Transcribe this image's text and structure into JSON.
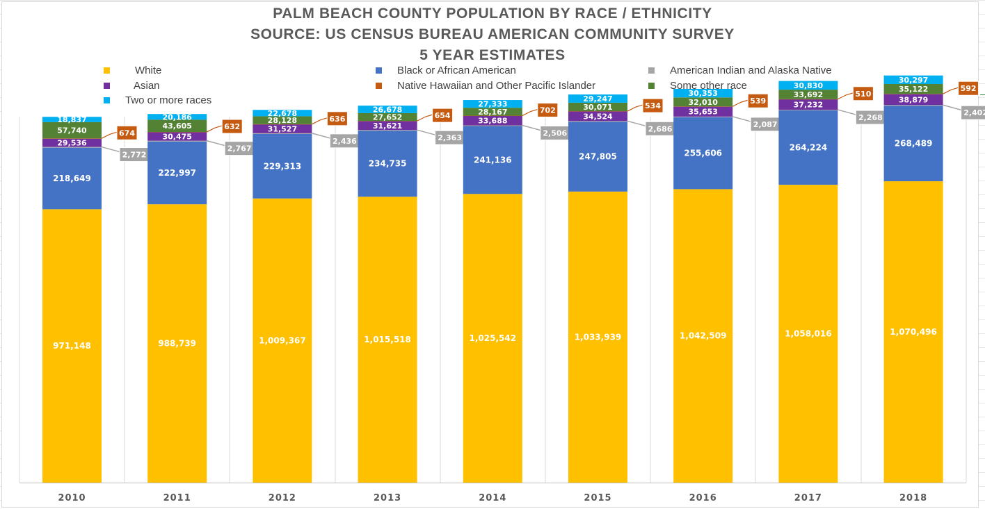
{
  "title_lines": [
    "PALM BEACH COUNTY POPULATION BY RACE / ETHNICITY",
    "SOURCE: US CENSUS BUREAU AMERICAN COMMUNITY SURVEY",
    "5 YEAR ESTIMATES"
  ],
  "chart_data": {
    "type": "bar",
    "stacked": true,
    "categories": [
      "2010",
      "2011",
      "2012",
      "2013",
      "2014",
      "2015",
      "2016",
      "2017",
      "2018"
    ],
    "series": [
      {
        "name": "White",
        "color": "#FFC000",
        "values": [
          971148,
          988739,
          1009367,
          1015518,
          1025542,
          1033939,
          1042509,
          1058016,
          1070496
        ],
        "labels": [
          "971,148",
          "988,739",
          "1,009,367",
          "1,015,518",
          "1,025,542",
          "1,033,939",
          "1,042,509",
          "1,058,016",
          "1,070,496"
        ]
      },
      {
        "name": "Black or African American",
        "color": "#4472C4",
        "values": [
          218649,
          222997,
          229313,
          234735,
          241136,
          247805,
          255606,
          264224,
          268489
        ],
        "labels": [
          "218,649",
          "222,997",
          "229,313",
          "234,735",
          "241,136",
          "247,805",
          "255,606",
          "264,224",
          "268,489"
        ]
      },
      {
        "name": "American Indian and Alaska Native",
        "color": "#A5A5A5",
        "values": [
          2772,
          2767,
          2436,
          2363,
          2506,
          2686,
          2087,
          2268,
          2402
        ],
        "labels": [
          "2,772",
          "2,767",
          "2,436",
          "2,363",
          "2,506",
          "2,686",
          "2,087",
          "2,268",
          "2,402"
        ]
      },
      {
        "name": "Asian",
        "color": "#7030A0",
        "values": [
          29536,
          30475,
          31527,
          31621,
          33688,
          34524,
          35653,
          37232,
          38879
        ],
        "labels": [
          "29,536",
          "30,475",
          "31,527",
          "31,621",
          "33,688",
          "34,524",
          "35,653",
          "37,232",
          "38,879"
        ]
      },
      {
        "name": "Native Hawaiian and Other Pacific Islander",
        "color": "#C55A11",
        "values": [
          674,
          632,
          636,
          654,
          702,
          534,
          539,
          510,
          592
        ],
        "labels": [
          "674",
          "632",
          "636",
          "654",
          "702",
          "534",
          "539",
          "510",
          "592"
        ]
      },
      {
        "name": "Some other race",
        "color": "#548235",
        "values": [
          57740,
          43605,
          28128,
          27652,
          28167,
          30071,
          32010,
          33692,
          35122
        ],
        "labels": [
          "57,740",
          "43,605",
          "28,128",
          "27,652",
          "28,167",
          "30,071",
          "32,010",
          "33,692",
          "35,122"
        ]
      },
      {
        "name": "Two or more races",
        "color": "#00B0F0",
        "values": [
          18837,
          20186,
          22678,
          26678,
          27333,
          29247,
          30353,
          30830,
          30297
        ],
        "labels": [
          "18,837",
          "20,186",
          "22,678",
          "26,678",
          "27,333",
          "29,247",
          "30,353",
          "30,830",
          "30,297"
        ]
      }
    ],
    "callout_series": [
      "American Indian and Alaska Native",
      "Native Hawaiian and Other Pacific Islander"
    ],
    "legend_position": "top",
    "grid": false,
    "xlabel": "",
    "ylabel": ""
  }
}
